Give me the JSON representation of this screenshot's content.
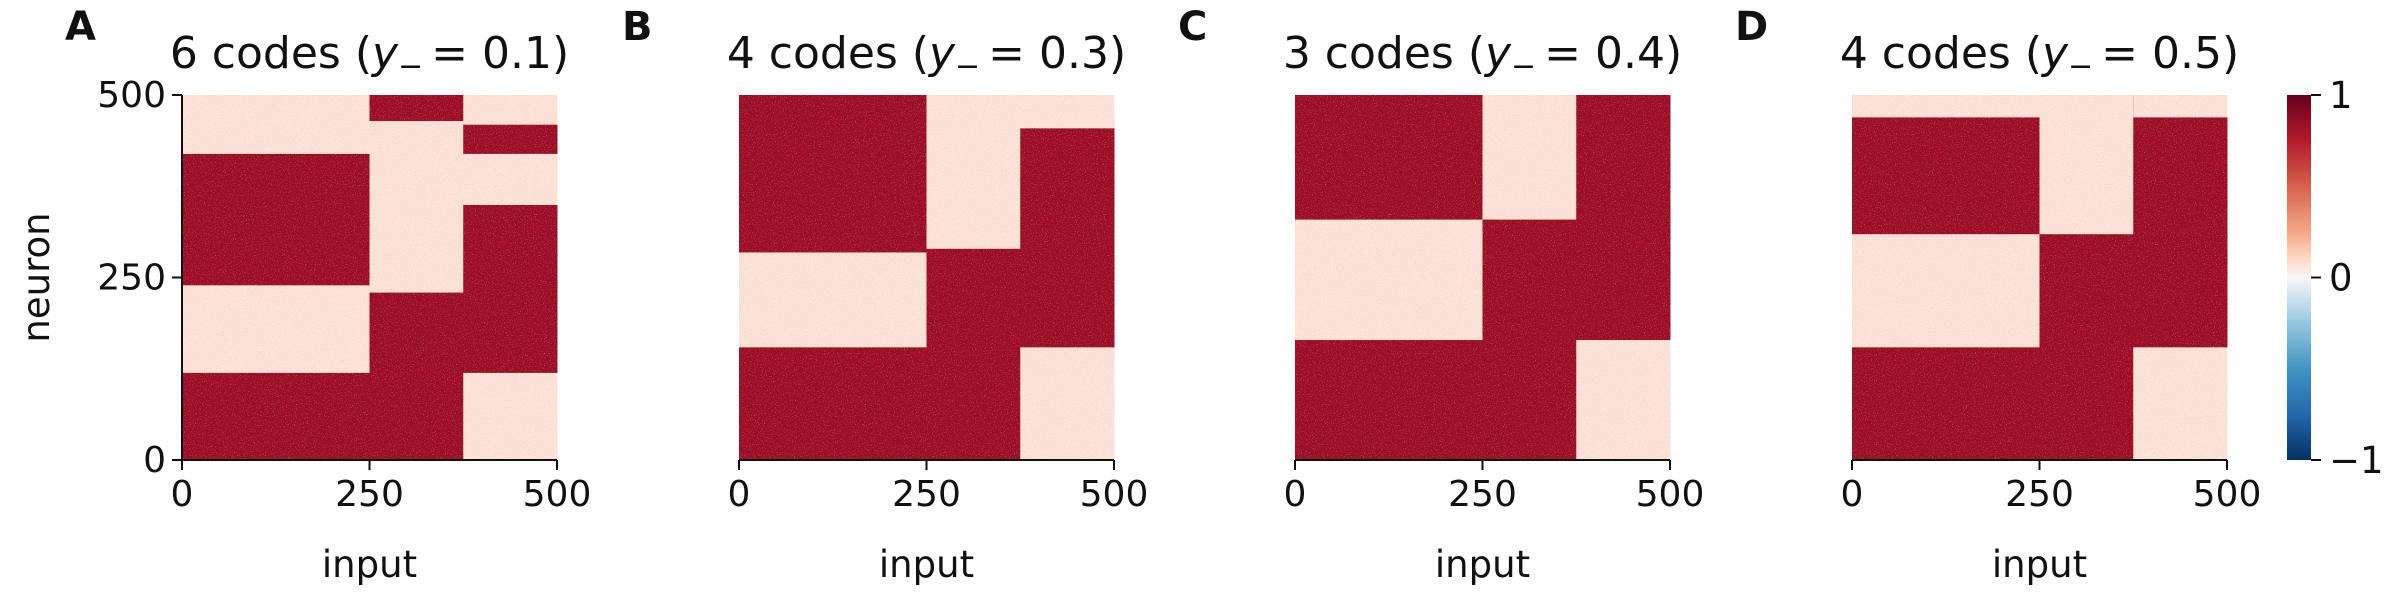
{
  "colors": {
    "dark_red": "#67001f",
    "cell_red": "#9b0d28",
    "pale": "#fbe3d7",
    "white_mid": "#f7f7f7",
    "blue": "#053061"
  },
  "chart_data": [
    {
      "type": "heatmap",
      "panel_letter": "A",
      "title": "6 codes (",
      "title_var": "y",
      "title_sub": "−",
      "title_value": "= 0.1)",
      "xlabel": "input",
      "ylabel": "neuron",
      "xlim": [
        0,
        500
      ],
      "ylim": [
        0,
        500
      ],
      "xticks": [
        "0",
        "250",
        "500"
      ],
      "yticks": [
        "0",
        "250",
        "500"
      ],
      "blocks": [
        {
          "x": [
            0,
            250
          ],
          "y": [
            240,
            500
          ],
          "level": "pale"
        },
        {
          "x": [
            0,
            250
          ],
          "y": [
            0,
            240
          ],
          "level": "dark"
        },
        {
          "x": [
            0,
            250
          ],
          "y": [
            0,
            120
          ],
          "level": "dark"
        },
        {
          "x": [
            0,
            250
          ],
          "y": [
            120,
            240
          ],
          "level": "pale"
        },
        {
          "x": [
            0,
            250
          ],
          "y": [
            240,
            350
          ],
          "level": "dark"
        },
        {
          "x": [
            0,
            250
          ],
          "y": [
            350,
            420
          ],
          "level": "dark"
        },
        {
          "x": [
            0,
            250
          ],
          "y": [
            420,
            500
          ],
          "level": "pale"
        },
        {
          "x": [
            250,
            375
          ],
          "y": [
            0,
            230
          ],
          "level": "dark"
        },
        {
          "x": [
            250,
            375
          ],
          "y": [
            230,
            465
          ],
          "level": "pale"
        },
        {
          "x": [
            250,
            375
          ],
          "y": [
            465,
            500
          ],
          "level": "dark"
        },
        {
          "x": [
            375,
            500
          ],
          "y": [
            0,
            120
          ],
          "level": "pale"
        },
        {
          "x": [
            375,
            500
          ],
          "y": [
            120,
            350
          ],
          "level": "dark"
        },
        {
          "x": [
            375,
            500
          ],
          "y": [
            350,
            420
          ],
          "level": "pale"
        },
        {
          "x": [
            375,
            500
          ],
          "y": [
            420,
            460
          ],
          "level": "dark"
        },
        {
          "x": [
            375,
            500
          ],
          "y": [
            460,
            500
          ],
          "level": "pale"
        }
      ]
    },
    {
      "type": "heatmap",
      "panel_letter": "B",
      "title": "4 codes (",
      "title_var": "y",
      "title_sub": "−",
      "title_value": "= 0.3)",
      "xlabel": "input",
      "ylabel": "",
      "xlim": [
        0,
        500
      ],
      "ylim": [
        0,
        500
      ],
      "xticks": [
        "0",
        "250",
        "500"
      ],
      "yticks": [],
      "blocks": [
        {
          "x": [
            0,
            250
          ],
          "y": [
            0,
            155
          ],
          "level": "dark"
        },
        {
          "x": [
            0,
            250
          ],
          "y": [
            155,
            285
          ],
          "level": "pale"
        },
        {
          "x": [
            0,
            250
          ],
          "y": [
            285,
            500
          ],
          "level": "dark"
        },
        {
          "x": [
            250,
            375
          ],
          "y": [
            0,
            290
          ],
          "level": "dark"
        },
        {
          "x": [
            250,
            375
          ],
          "y": [
            290,
            455
          ],
          "level": "pale"
        },
        {
          "x": [
            250,
            375
          ],
          "y": [
            455,
            500
          ],
          "level": "pale"
        },
        {
          "x": [
            375,
            500
          ],
          "y": [
            0,
            155
          ],
          "level": "pale"
        },
        {
          "x": [
            375,
            500
          ],
          "y": [
            155,
            455
          ],
          "level": "dark"
        },
        {
          "x": [
            375,
            500
          ],
          "y": [
            455,
            500
          ],
          "level": "pale"
        }
      ]
    },
    {
      "type": "heatmap",
      "panel_letter": "C",
      "title": "3 codes (",
      "title_var": "y",
      "title_sub": "−",
      "title_value": "= 0.4)",
      "xlabel": "input",
      "ylabel": "",
      "xlim": [
        0,
        500
      ],
      "ylim": [
        0,
        500
      ],
      "xticks": [
        "0",
        "250",
        "500"
      ],
      "yticks": [],
      "blocks": [
        {
          "x": [
            0,
            250
          ],
          "y": [
            0,
            165
          ],
          "level": "dark"
        },
        {
          "x": [
            0,
            250
          ],
          "y": [
            165,
            330
          ],
          "level": "pale"
        },
        {
          "x": [
            0,
            250
          ],
          "y": [
            330,
            500
          ],
          "level": "dark"
        },
        {
          "x": [
            250,
            375
          ],
          "y": [
            0,
            330
          ],
          "level": "dark"
        },
        {
          "x": [
            250,
            375
          ],
          "y": [
            330,
            500
          ],
          "level": "pale"
        },
        {
          "x": [
            375,
            500
          ],
          "y": [
            0,
            165
          ],
          "level": "pale"
        },
        {
          "x": [
            375,
            500
          ],
          "y": [
            165,
            500
          ],
          "level": "dark"
        }
      ]
    },
    {
      "type": "heatmap",
      "panel_letter": "D",
      "title": "4 codes (",
      "title_var": "y",
      "title_sub": "−",
      "title_value": "= 0.5)",
      "xlabel": "input",
      "ylabel": "",
      "xlim": [
        0,
        500
      ],
      "ylim": [
        0,
        500
      ],
      "xticks": [
        "0",
        "250",
        "500"
      ],
      "yticks": [],
      "blocks": [
        {
          "x": [
            0,
            250
          ],
          "y": [
            0,
            155
          ],
          "level": "dark"
        },
        {
          "x": [
            0,
            250
          ],
          "y": [
            155,
            310
          ],
          "level": "pale"
        },
        {
          "x": [
            0,
            250
          ],
          "y": [
            310,
            470
          ],
          "level": "dark"
        },
        {
          "x": [
            0,
            250
          ],
          "y": [
            470,
            500
          ],
          "level": "pale"
        },
        {
          "x": [
            250,
            375
          ],
          "y": [
            0,
            310
          ],
          "level": "dark"
        },
        {
          "x": [
            250,
            375
          ],
          "y": [
            310,
            470
          ],
          "level": "pale"
        },
        {
          "x": [
            250,
            375
          ],
          "y": [
            470,
            500
          ],
          "level": "pale"
        },
        {
          "x": [
            375,
            500
          ],
          "y": [
            0,
            155
          ],
          "level": "pale"
        },
        {
          "x": [
            375,
            500
          ],
          "y": [
            155,
            500
          ],
          "level": "dark"
        },
        {
          "x": [
            375,
            500
          ],
          "y": [
            470,
            500
          ],
          "level": "pale"
        }
      ]
    }
  ],
  "colorbar": {
    "range": [
      -1,
      1
    ],
    "ticks": [
      "1",
      "0",
      "−1"
    ],
    "tick_values": [
      1,
      0,
      -1
    ]
  }
}
